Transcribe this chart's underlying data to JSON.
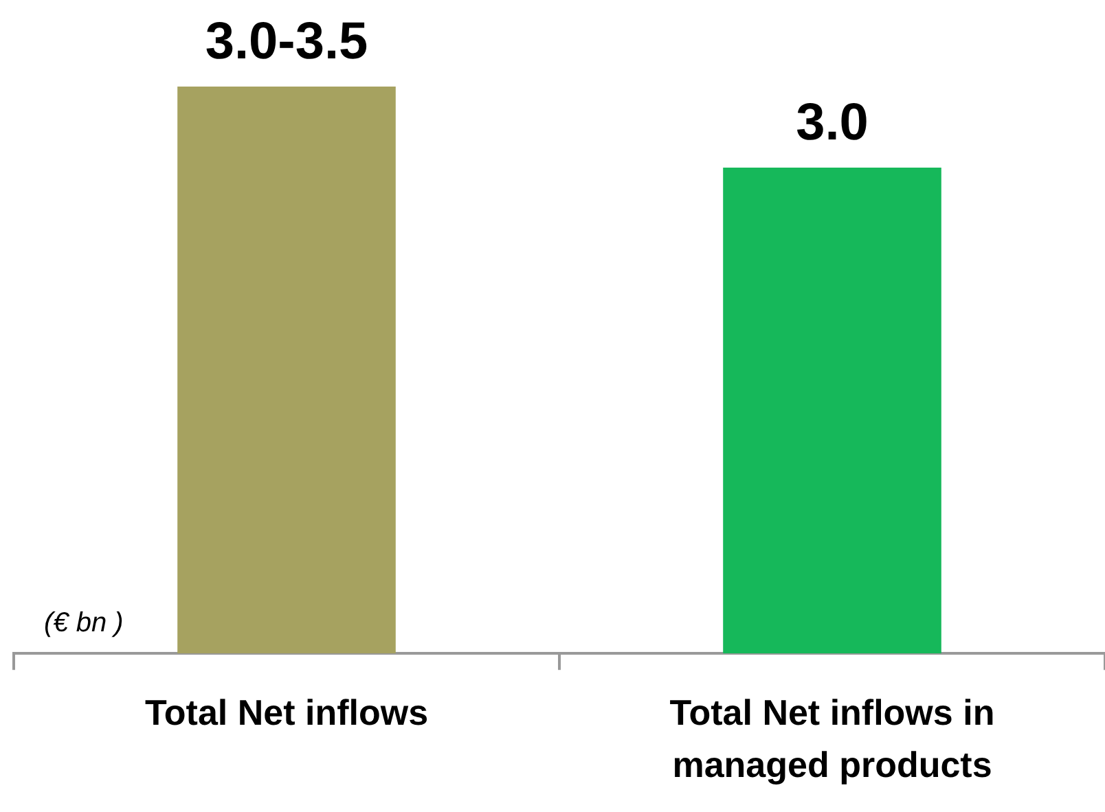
{
  "chart_data": {
    "type": "bar",
    "stacked": true,
    "categories": [
      "Total Net inflows",
      "Total Net inflows in managed products"
    ],
    "series": [
      {
        "colors": [
          "#a6a260",
          "#16b85a"
        ],
        "values": [
          3.0,
          3.0
        ],
        "value_labels": [
          null,
          "3.0"
        ]
      },
      {
        "color": "#a6a260",
        "values": [
          0.5,
          null
        ],
        "value_labels": [
          "3.0-3.5",
          null
        ]
      }
    ],
    "annotations": [
      "(€ bn )"
    ],
    "tick_labels": "x",
    "grid": false,
    "legend": false
  }
}
